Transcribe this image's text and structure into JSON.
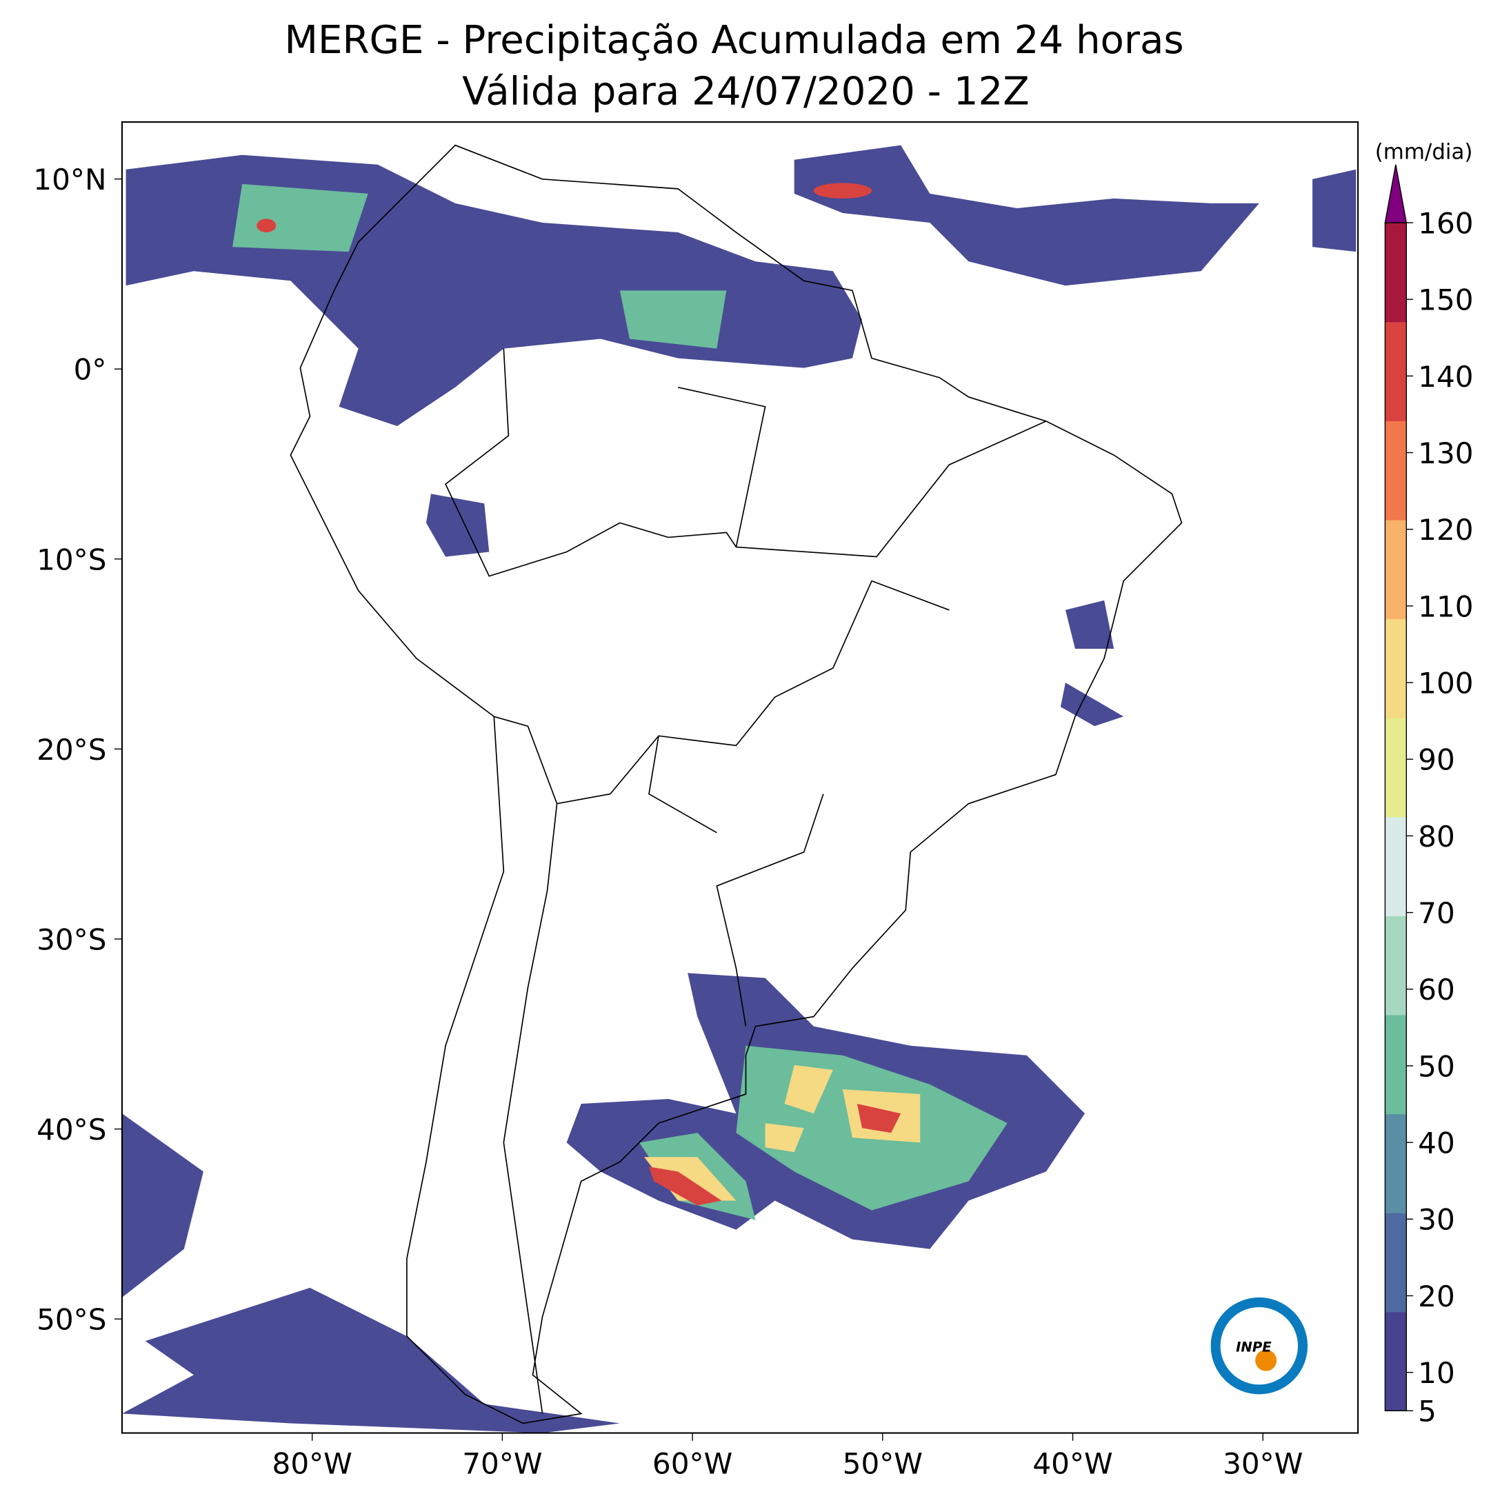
{
  "chart_data": {
    "type": "map",
    "title": "MERGE - Precipitação Acumulada em 24 horas",
    "subtitle": "Válida para 24/07/2020 - 12Z",
    "xlim": [
      -90,
      -25
    ],
    "ylim": [
      -56,
      13
    ],
    "xticks": [
      {
        "value": -80,
        "label": "80°W"
      },
      {
        "value": -70,
        "label": "70°W"
      },
      {
        "value": -60,
        "label": "60°W"
      },
      {
        "value": -50,
        "label": "50°W"
      },
      {
        "value": -40,
        "label": "40°W"
      },
      {
        "value": -30,
        "label": "30°W"
      }
    ],
    "yticks": [
      {
        "value": 10,
        "label": "10°N"
      },
      {
        "value": 0,
        "label": "0°"
      },
      {
        "value": -10,
        "label": "10°S"
      },
      {
        "value": -20,
        "label": "20°S"
      },
      {
        "value": -30,
        "label": "30°S"
      },
      {
        "value": -40,
        "label": "40°S"
      },
      {
        "value": -50,
        "label": "50°S"
      }
    ],
    "colorbar": {
      "label": "(mm/dia)",
      "lim": [
        5,
        160
      ],
      "ticks": [
        5,
        10,
        20,
        30,
        40,
        50,
        60,
        70,
        80,
        90,
        100,
        110,
        120,
        130,
        140,
        150,
        160
      ],
      "colors": [
        "#47438f",
        "#4f6aa0",
        "#5a8fa5",
        "#6bbd9c",
        "#a6d8bf",
        "#d8ebe6",
        "#e6ec8e",
        "#f6d983",
        "#f8b26a",
        "#f1784b",
        "#d9433f",
        "#a7183f"
      ],
      "extend_color": "#800080"
    },
    "logo": "INPE"
  }
}
